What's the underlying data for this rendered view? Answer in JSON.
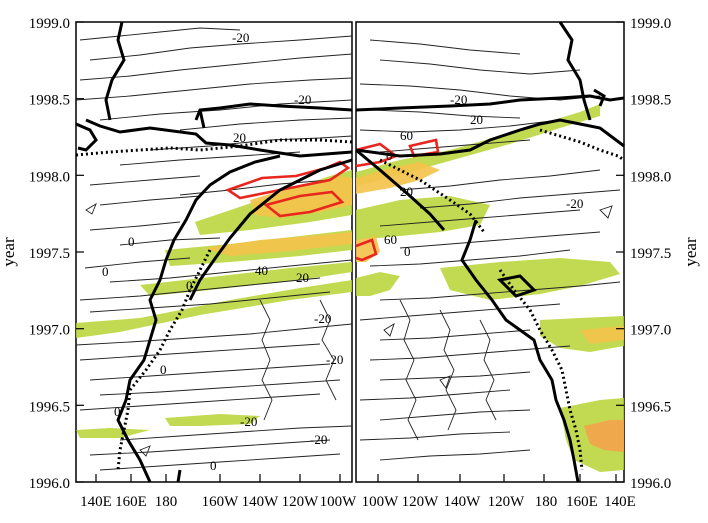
{
  "chart_data": [
    {
      "type": "contour",
      "panel": "left",
      "title": "",
      "ylabel": "year",
      "ylim": [
        1996.0,
        1999.0
      ],
      "y_ticks": [
        "1996.0",
        "1996.5",
        "1997.0",
        "1997.5",
        "1998.0",
        "1998.5",
        "1999.0"
      ],
      "x_ticks": [
        "140E",
        "160E",
        "180",
        "160W",
        "140W",
        "120W",
        "100W"
      ],
      "contour_labels": [
        {
          "text": "-20",
          "x": "100W",
          "y": 1998.94
        },
        {
          "text": "-20",
          "x": "120W",
          "y": 1998.44
        },
        {
          "text": "20",
          "x": "160W",
          "y": 1998.25
        },
        {
          "text": "0",
          "x": "160E",
          "y": 1997.6
        },
        {
          "text": "40",
          "x": "140W",
          "y": 1997.3
        },
        {
          "text": "20",
          "x": "120W",
          "y": 1997.25
        },
        {
          "text": "0",
          "x": "160W",
          "y": 1997.18
        },
        {
          "text": "-20",
          "x": "120W",
          "y": 1997.12
        },
        {
          "text": "-20",
          "x": "100W",
          "y": 1996.93
        },
        {
          "text": "0",
          "x": "160E",
          "y": 1997.25
        },
        {
          "text": "0",
          "x": "180",
          "y": 1996.68
        },
        {
          "text": "-20",
          "x": "140W",
          "y": 1996.38
        },
        {
          "text": "-20",
          "x": "120W",
          "y": 1996.25
        },
        {
          "text": "0",
          "x": "160W",
          "y": 1996.12
        },
        {
          "text": "0",
          "x": "160E",
          "y": 1996.45
        }
      ]
    },
    {
      "type": "contour",
      "panel": "right",
      "title": "",
      "ylabel": "year",
      "ylim": [
        1996.0,
        1999.0
      ],
      "y_ticks": [
        "1996.0",
        "1996.5",
        "1997.0",
        "1997.5",
        "1998.0",
        "1998.5",
        "1999.0"
      ],
      "x_ticks": [
        "100W",
        "120W",
        "140W",
        "120W",
        "180",
        "160E",
        "140E"
      ],
      "contour_labels": [
        {
          "text": "-20",
          "x": "120W",
          "y": 1998.44
        },
        {
          "text": "20",
          "x": "140W",
          "y": 1998.3
        },
        {
          "text": "60",
          "x": "120W",
          "y": 1998.2
        },
        {
          "text": "0",
          "x": "100W",
          "y": 1998.13
        },
        {
          "text": "20",
          "x": "100W",
          "y": 1998.0
        },
        {
          "text": "-20",
          "x": "160E",
          "y": 1997.85
        },
        {
          "text": "60",
          "x": "120W",
          "y": 1997.55
        },
        {
          "text": "0",
          "x": "120W",
          "y": 1997.45
        }
      ]
    }
  ]
}
